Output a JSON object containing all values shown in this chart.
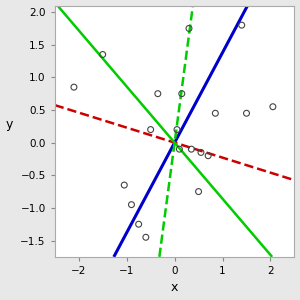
{
  "scatter_points": [
    [
      -2.1,
      0.85
    ],
    [
      -1.5,
      1.35
    ],
    [
      -1.05,
      -0.65
    ],
    [
      -0.9,
      -0.95
    ],
    [
      -0.75,
      -1.25
    ],
    [
      -0.6,
      -1.45
    ],
    [
      -0.5,
      0.2
    ],
    [
      -0.35,
      0.75
    ],
    [
      0.05,
      0.2
    ],
    [
      0.1,
      -0.1
    ],
    [
      0.15,
      0.75
    ],
    [
      0.3,
      1.75
    ],
    [
      0.35,
      -0.1
    ],
    [
      0.5,
      -0.75
    ],
    [
      0.55,
      -0.15
    ],
    [
      0.7,
      -0.2
    ],
    [
      0.85,
      0.45
    ],
    [
      1.4,
      1.8
    ],
    [
      1.5,
      0.45
    ],
    [
      2.05,
      0.55
    ]
  ],
  "lines": [
    {
      "slope": 1.38,
      "intercept": 0.0,
      "color": "#0000cc",
      "linestyle": "-",
      "linewidth": 2.2
    },
    {
      "slope": -0.23,
      "intercept": 0.0,
      "color": "#cc0000",
      "linestyle": "--",
      "linewidth": 1.8
    },
    {
      "slope": -0.86,
      "intercept": 0.0,
      "color": "#00cc00",
      "linestyle": "-",
      "linewidth": 1.8
    },
    {
      "slope": 5.5,
      "intercept": 0.0,
      "color": "#00cc00",
      "linestyle": "--",
      "linewidth": 1.8
    }
  ],
  "xlim": [
    -2.5,
    2.5
  ],
  "ylim": [
    -1.75,
    2.1
  ],
  "xlabel": "x",
  "ylabel": "y",
  "xticks": [
    -2,
    -1,
    0,
    1,
    2
  ],
  "yticks": [
    -1.5,
    -1.0,
    -0.5,
    0.0,
    0.5,
    1.0,
    1.5,
    2.0
  ],
  "plot_bg_color": "#ffffff",
  "fig_bg_color": "#e8e8e8",
  "scatter_edgecolor": "#444444",
  "scatter_size": 18,
  "figsize": [
    3.0,
    3.0
  ],
  "dpi": 100
}
